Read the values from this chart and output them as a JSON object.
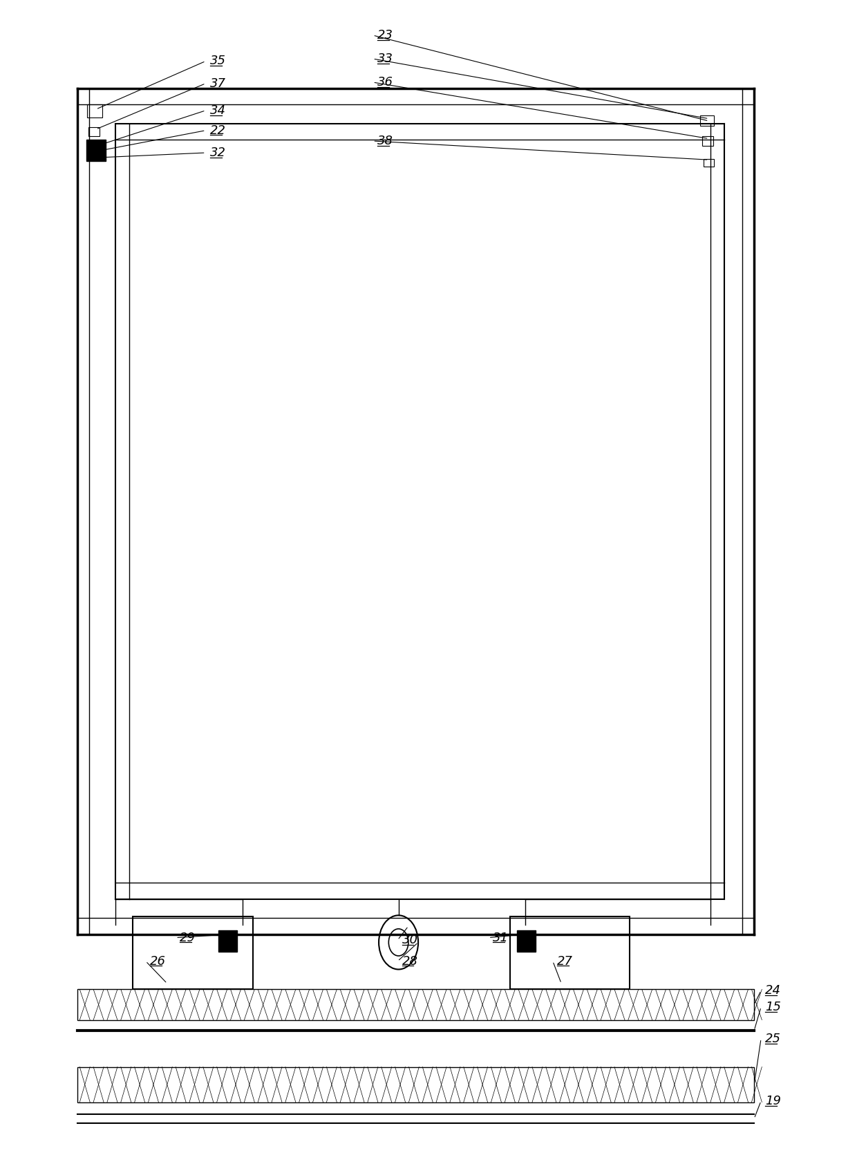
{
  "bg_color": "#ffffff",
  "line_color": "#000000",
  "fig_width": 12.4,
  "fig_height": 17.0,
  "dpi": 100
}
